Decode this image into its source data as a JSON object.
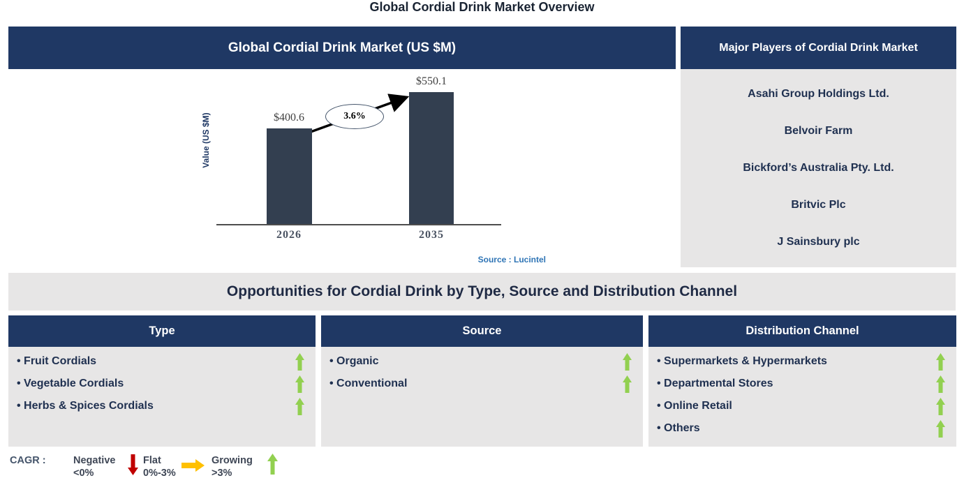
{
  "page": {
    "title": "Global Cordial Drink Market Overview"
  },
  "chart_panel": {
    "title": "Global Cordial Drink Market (US $M)"
  },
  "chart_data": {
    "type": "bar",
    "title": "Global Cordial Drink Market (US $M)",
    "categories": [
      "2026",
      "2035"
    ],
    "values": [
      400.6,
      550.1
    ],
    "value_labels": [
      "$400.6",
      "$550.1"
    ],
    "cagr_label": "3.6%",
    "ylabel": "Value (US $M)",
    "xlabel": "",
    "ylim": [
      0,
      650
    ],
    "grid": "off",
    "legend": "none",
    "bar_color": "#333F50",
    "source": "Source : Lucintel"
  },
  "players_panel": {
    "title": "Major Players of Cordial Drink Market",
    "players": [
      "Asahi Group Holdings Ltd.",
      "Belvoir Farm",
      "Bickford’s Australia Pty. Ltd.",
      "Britvic Plc",
      "J Sainsbury plc"
    ]
  },
  "opportunities": {
    "title": "Opportunities for Cordial Drink by Type, Source and Distribution Channel",
    "columns": [
      {
        "title": "Type",
        "items": [
          {
            "label": "Fruit Cordials",
            "trend": "growing"
          },
          {
            "label": "Vegetable Cordials",
            "trend": "growing"
          },
          {
            "label": "Herbs & Spices Cordials",
            "trend": "growing"
          }
        ]
      },
      {
        "title": "Source",
        "items": [
          {
            "label": "Organic",
            "trend": "growing"
          },
          {
            "label": "Conventional",
            "trend": "growing"
          }
        ]
      },
      {
        "title": "Distribution Channel",
        "items": [
          {
            "label": "Supermarkets & Hypermarkets",
            "trend": "growing"
          },
          {
            "label": "Departmental Stores",
            "trend": "growing"
          },
          {
            "label": "Online Retail",
            "trend": "growing"
          },
          {
            "label": "Others",
            "trend": "growing"
          }
        ]
      }
    ]
  },
  "legend": {
    "label": "CAGR :",
    "items": [
      {
        "name": "Negative",
        "range": "<0%",
        "arrow": "down",
        "color": "#C00000"
      },
      {
        "name": "Flat",
        "range": "0%-3%",
        "arrow": "right",
        "color": "#FFC000"
      },
      {
        "name": "Growing",
        "range": ">3%",
        "arrow": "up",
        "color": "#92D050"
      }
    ]
  },
  "colors": {
    "header_navy": "#1F3864",
    "panel_gray": "#E7E6E6",
    "bar": "#333F50",
    "text_navy": "#1F3050",
    "source_blue": "#2E74B5",
    "growing_green": "#92D050",
    "flat_yellow": "#FFC000",
    "negative_red": "#C00000"
  }
}
